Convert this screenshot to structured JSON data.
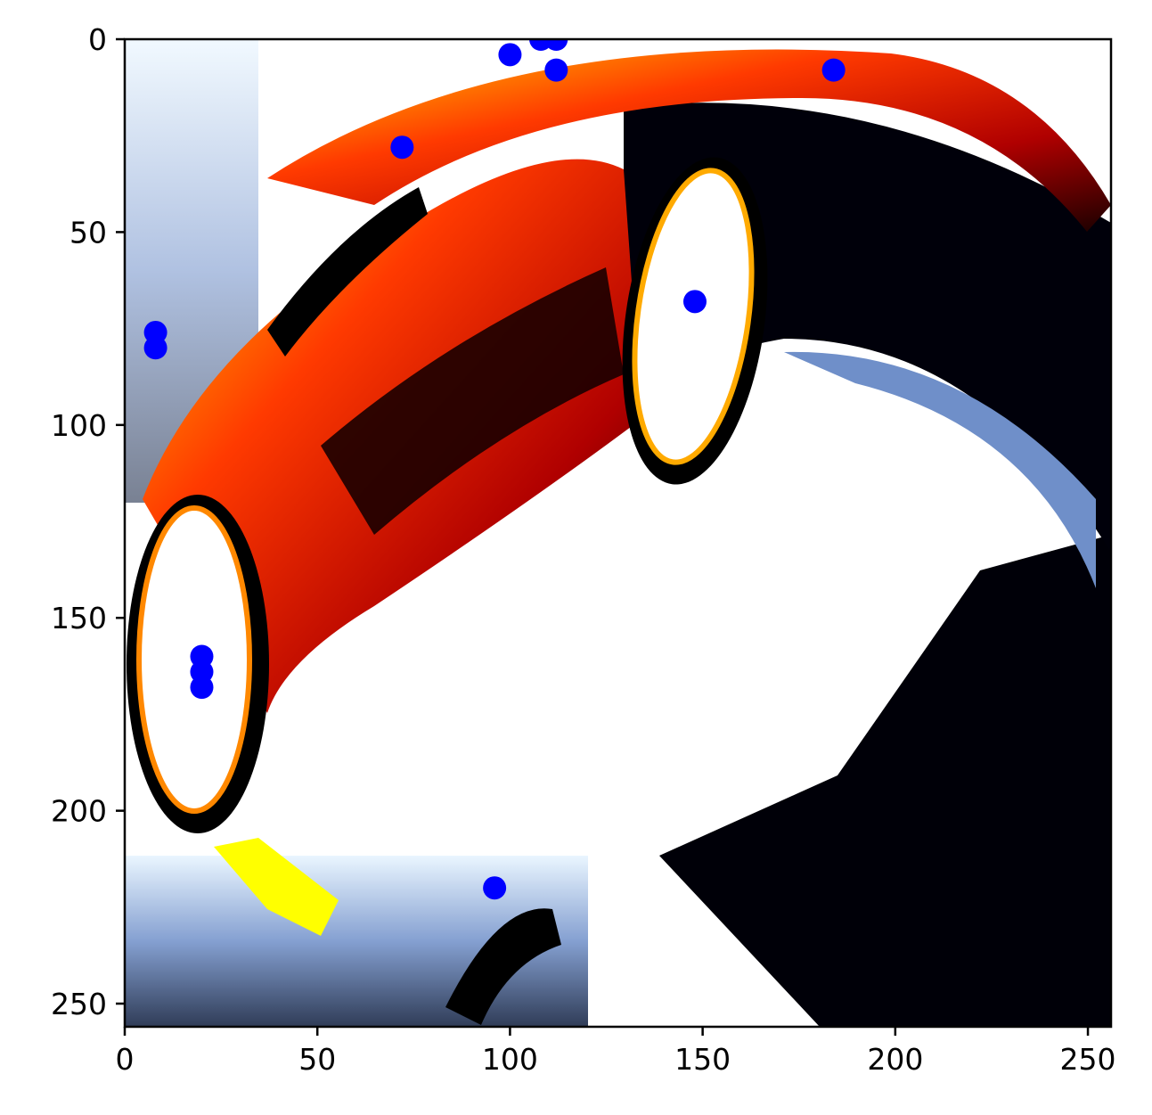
{
  "chart_data": {
    "type": "scatter",
    "title": "",
    "xlabel": "",
    "ylabel": "",
    "xlim": [
      0,
      256
    ],
    "ylim": [
      256,
      0
    ],
    "x_ticks": [
      0,
      50,
      100,
      150,
      200,
      250
    ],
    "y_ticks": [
      0,
      50,
      100,
      150,
      200,
      250
    ],
    "x_tick_labels": [
      "0",
      "50",
      "100",
      "150",
      "200",
      "250"
    ],
    "y_tick_labels": [
      "0",
      "50",
      "100",
      "150",
      "200",
      "250"
    ],
    "background": "image (false-color heatmap rendering of a car)",
    "grid": false,
    "marker_color": "#0000ff",
    "series": [
      {
        "points": [
          [
            108,
            0
          ],
          [
            112,
            0
          ],
          [
            100,
            4
          ],
          [
            112,
            8
          ],
          [
            184,
            8
          ],
          [
            72,
            28
          ],
          [
            148,
            68
          ],
          [
            8,
            76
          ],
          [
            8,
            80
          ],
          [
            20,
            160
          ],
          [
            20,
            164
          ],
          [
            20,
            168
          ],
          [
            96,
            220
          ]
        ]
      }
    ]
  }
}
